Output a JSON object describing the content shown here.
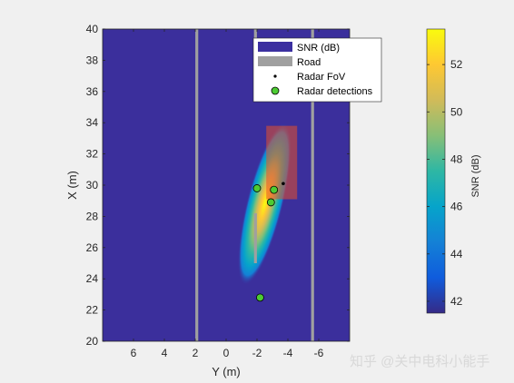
{
  "watermark": "知乎 @关中电科小能手",
  "chart_data": {
    "type": "heatmap",
    "title": "",
    "xlabel": "Y (m)",
    "ylabel": "X (m)",
    "xlim": [
      8,
      -8
    ],
    "ylim": [
      20,
      40
    ],
    "x_axis_reversed": true,
    "x_ticks": [
      6,
      4,
      2,
      0,
      -2,
      -4,
      -6
    ],
    "y_ticks": [
      20,
      22,
      24,
      26,
      28,
      30,
      32,
      34,
      36,
      38,
      40
    ],
    "colorbar": {
      "label": "SNR (dB)",
      "range": [
        41.5,
        53.5
      ],
      "ticks": [
        42,
        44,
        46,
        48,
        50,
        52
      ],
      "colormap": "parula",
      "stops": [
        "#352a87",
        "#0f5cdd",
        "#1481d6",
        "#06a4ca",
        "#2eb7a4",
        "#87bf77",
        "#d1bb59",
        "#fec832",
        "#f9fb0e"
      ]
    },
    "background_color": "#3b2f9c",
    "snr_blob": {
      "peak_snr": 53.5,
      "peak_y": -2.5,
      "peak_x": 28.8
    },
    "road": {
      "color": "#a0a0a0",
      "lines_y": [
        1.9,
        -5.6
      ],
      "segments": [
        {
          "y": -1.9,
          "x_start": 25,
          "x_end": 28.2
        },
        {
          "y": -1.9,
          "x_start": 35.8,
          "x_end": 40
        }
      ]
    },
    "radar_fov": {
      "color": "#e8502a",
      "y_range": [
        -2.6,
        -4.6
      ],
      "x_range": [
        29.1,
        33.8
      ]
    },
    "radar_position": {
      "y": -3.7,
      "x": 30.1
    },
    "detections": [
      {
        "y": -2.0,
        "x": 29.8
      },
      {
        "y": -3.1,
        "x": 29.7
      },
      {
        "y": -2.9,
        "x": 28.9
      },
      {
        "y": -2.2,
        "x": 22.8
      }
    ],
    "detection_color": "#4dcc33",
    "legend": {
      "position": "top-right",
      "entries": [
        {
          "label": "SNR (dB)",
          "marker": "patch",
          "color": "#3b2fa0"
        },
        {
          "label": "Road",
          "marker": "patch",
          "color": "#a0a0a0"
        },
        {
          "label": "Radar FoV",
          "marker": "dot",
          "color": "#000000"
        },
        {
          "label": "Radar detections",
          "marker": "circle",
          "color": "#4dcc33"
        }
      ]
    }
  }
}
